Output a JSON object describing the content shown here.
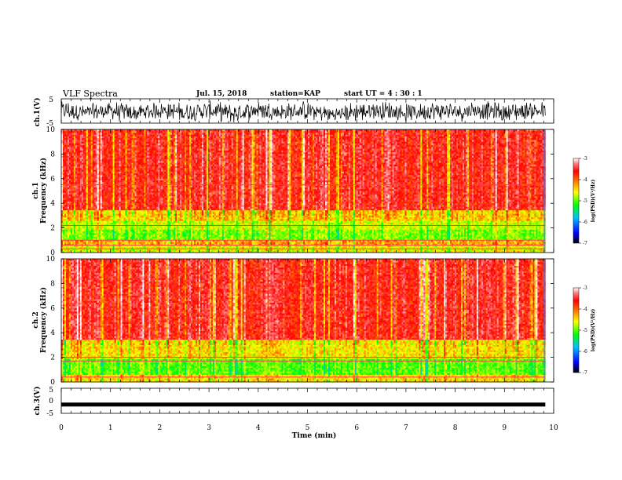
{
  "header": {
    "title": "VLF Spectra",
    "date": "Jul. 15, 2018",
    "station": "station=KAP",
    "start": "start UT =  4 : 30 : 1"
  },
  "colors": {
    "spectrum_scale": [
      "#000000",
      "#0000ff",
      "#00a0ff",
      "#00ff00",
      "#ffff00",
      "#ff8000",
      "#ff0000",
      "#ff6060",
      "#ffffff"
    ],
    "waveform": "#000000",
    "background": "#ffffff"
  },
  "chart_data": [
    {
      "type": "line",
      "panel": "ch1-waveform",
      "ylabel": "ch.1(V)",
      "ylim": [
        -5,
        5
      ],
      "yticks": [
        "5",
        "-5"
      ],
      "xlim": [
        0,
        10
      ],
      "x_data_end": 9.83,
      "series": [
        {
          "x": [
            0,
            0.5,
            1.0,
            1.5,
            2.0,
            2.5,
            3.0,
            3.5,
            4.0,
            4.5,
            5.0,
            5.5,
            6.0,
            6.5,
            7.0,
            7.5,
            8.0,
            8.5,
            9.0,
            9.5,
            9.83
          ],
          "y": [
            0.5,
            -0.8,
            0.2,
            -1.0,
            0.4,
            -0.6,
            0.3,
            -1.2,
            0.6,
            -0.5,
            0.1,
            -1.5,
            -0.3,
            0.4,
            -0.9,
            0.2,
            -0.4,
            0.5,
            -0.7,
            0.3,
            -0.2
          ]
        }
      ]
    },
    {
      "type": "heatmap",
      "panel": "ch1-spectrogram",
      "ylabel": "ch.1\nFrequency (kHz)",
      "ylim": [
        0,
        10
      ],
      "yticks": [
        "0",
        "2",
        "4",
        "6",
        "8",
        "10"
      ],
      "xlim": [
        0,
        10
      ],
      "x_data_end": 9.83,
      "value_label": "log(PSD)(V²/Hz)",
      "value_range": [
        -7,
        -3
      ],
      "band_levels": [
        {
          "f": [
            0,
            0.6
          ],
          "v": -4.6
        },
        {
          "f": [
            0.6,
            1.0
          ],
          "v": -4.3
        },
        {
          "f": [
            1.0,
            1.8
          ],
          "v": -4.9
        },
        {
          "f": [
            1.8,
            2.6
          ],
          "v": -4.7
        },
        {
          "f": [
            2.6,
            3.4
          ],
          "v": -4.4
        },
        {
          "f": [
            3.4,
            10
          ],
          "v": -3.7
        }
      ],
      "lines_khz": [
        0.3,
        0.6,
        1.0,
        2.2,
        5.5
      ]
    },
    {
      "type": "heatmap",
      "panel": "ch2-spectrogram",
      "ylabel": "ch.2\nFrequency (kHz)",
      "ylim": [
        0,
        10
      ],
      "yticks": [
        "0",
        "2",
        "4",
        "6",
        "8",
        "10"
      ],
      "xlim": [
        0,
        10
      ],
      "x_data_end": 9.83,
      "value_label": "log(PSD)(V²/Hz)",
      "value_range": [
        -7,
        -3
      ],
      "band_levels": [
        {
          "f": [
            0,
            0.6
          ],
          "v": -4.5
        },
        {
          "f": [
            0.6,
            1.8
          ],
          "v": -5.0
        },
        {
          "f": [
            1.8,
            3.5
          ],
          "v": -4.5
        },
        {
          "f": [
            3.5,
            10
          ],
          "v": -3.7
        }
      ],
      "lines_khz": [
        0.4,
        1.7,
        2.0
      ]
    },
    {
      "type": "line",
      "panel": "ch3-waveform",
      "ylabel": "ch.3(V)",
      "ylim": [
        -5,
        5
      ],
      "yticks": [
        "5",
        "0",
        "-5"
      ],
      "xlim": [
        0,
        10
      ],
      "x_data_end": 9.83,
      "series": [
        {
          "x": [
            0,
            9.83
          ],
          "y": [
            -1.5,
            -1.5
          ]
        }
      ]
    }
  ],
  "xaxis": {
    "label": "Time (min)",
    "ticks": [
      "0",
      "1",
      "2",
      "3",
      "4",
      "5",
      "6",
      "7",
      "8",
      "9",
      "10"
    ]
  },
  "colorbars": [
    {
      "ticks": [
        "-3",
        "-4",
        "-5",
        "-6",
        "-7"
      ],
      "label": "log(PSD)(V²/Hz)"
    },
    {
      "ticks": [
        "-3",
        "-4",
        "-5",
        "-6",
        "-7"
      ],
      "label": "log(PSD)(V²/Hz)"
    }
  ]
}
